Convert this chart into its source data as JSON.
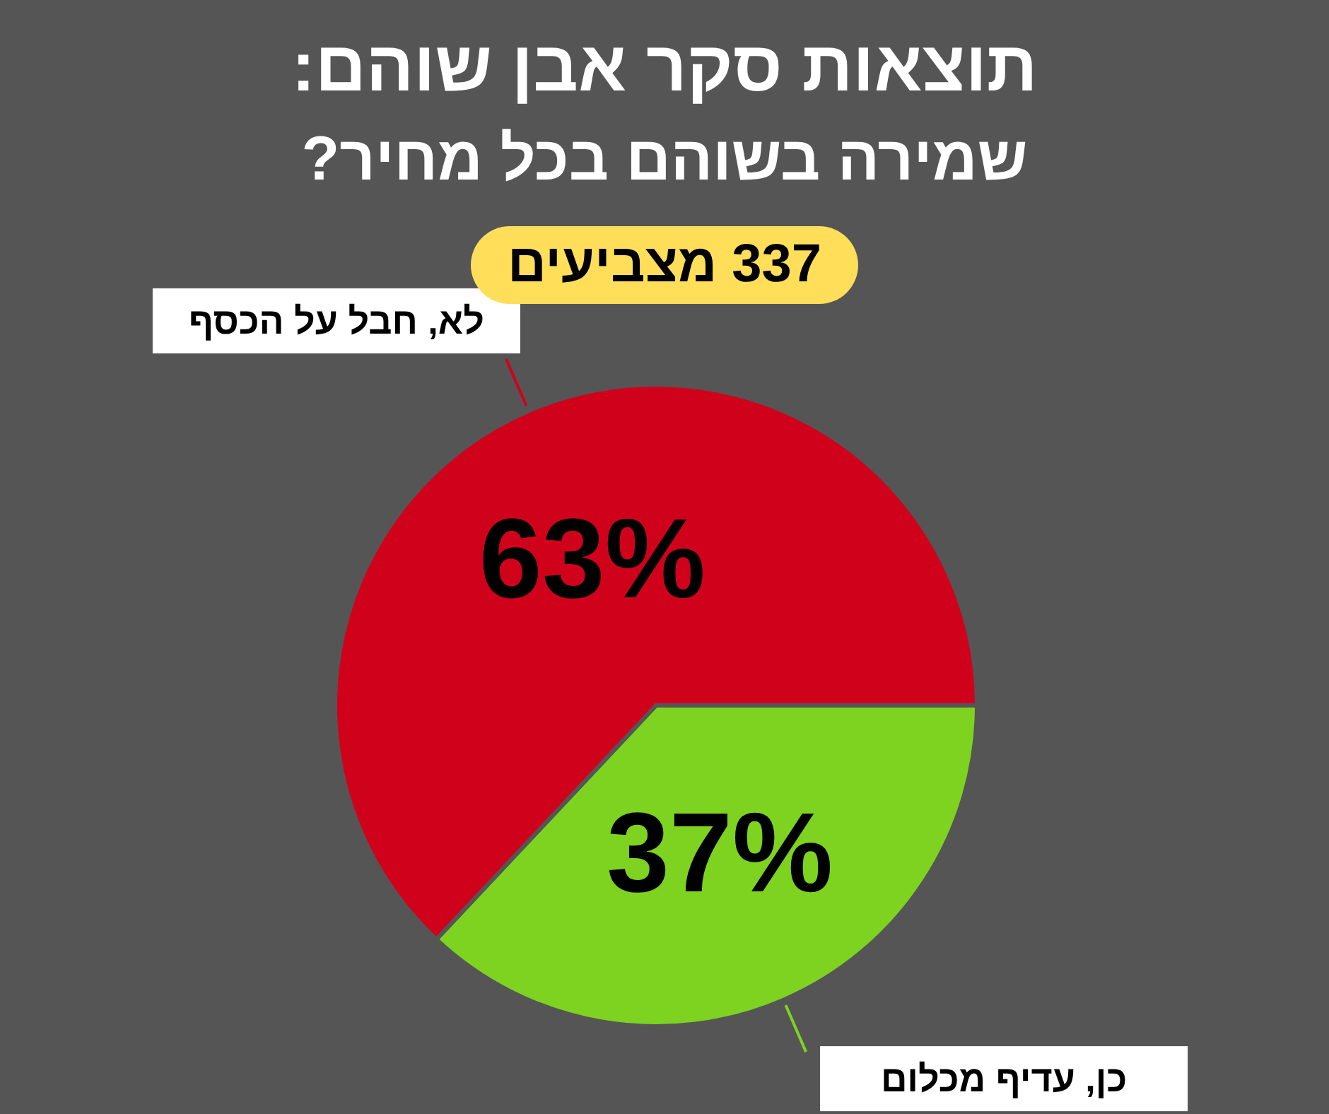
{
  "chart_data": {
    "type": "pie",
    "title": "תוצאות סקר אבן שוהם:",
    "subtitle": "שמירה בשוהם בכל מחיר?",
    "annotations": [
      "337 מצביעים"
    ],
    "categories": [
      "כן, עדיף מכלום",
      "לא, חבל על הכסף"
    ],
    "values": [
      37,
      63
    ],
    "colors": [
      "#7ed321",
      "#d0021b"
    ],
    "value_labels": [
      "37%",
      "63%"
    ],
    "legend": false
  }
}
